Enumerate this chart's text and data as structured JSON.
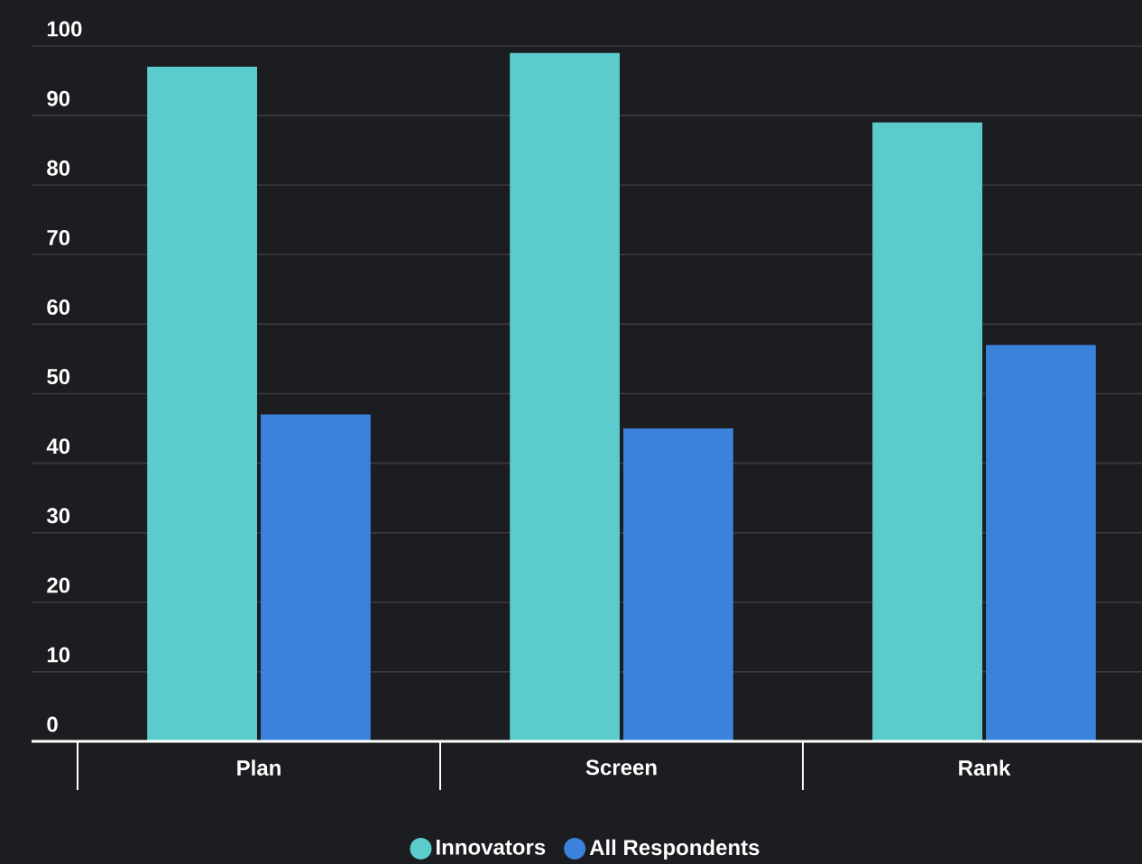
{
  "chart_data": {
    "type": "bar",
    "categories": [
      "Plan",
      "Screen",
      "Rank"
    ],
    "series": [
      {
        "name": "Innovators",
        "color": "#5bcbcb",
        "values": [
          97,
          99,
          89
        ]
      },
      {
        "name": "All Respondents",
        "color": "#3a82dc",
        "values": [
          47,
          45,
          57
        ]
      }
    ],
    "ylim": [
      0,
      100
    ],
    "yticks": [
      0,
      10,
      20,
      30,
      40,
      50,
      60,
      70,
      80,
      90,
      100
    ],
    "grid": "y",
    "legend": "bottom"
  }
}
